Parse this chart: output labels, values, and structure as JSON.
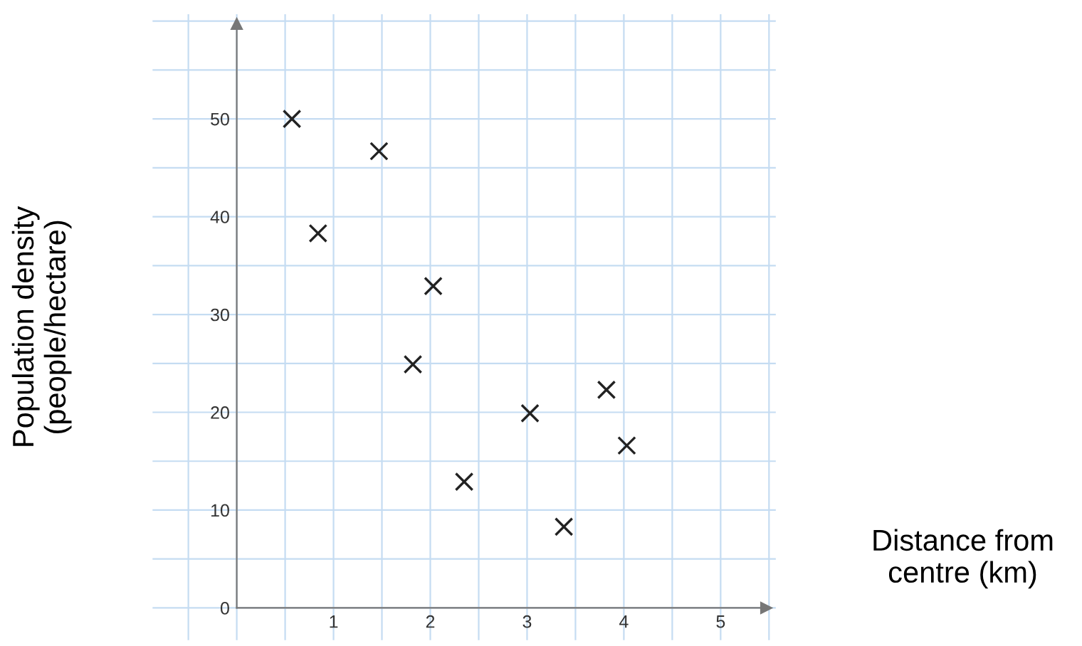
{
  "chart_data": {
    "type": "scatter",
    "xlabel": "Distance from\ncentre (km)",
    "ylabel": "Population density\n(people/hectare)",
    "x": [
      0.57,
      0.84,
      1.47,
      2.03,
      1.82,
      2.35,
      3.03,
      3.38,
      3.82,
      4.03
    ],
    "series": [
      {
        "color": "#222222",
        "values": [
          50.0,
          38.3,
          46.7,
          32.9,
          24.9,
          12.9,
          19.9,
          8.3,
          22.3,
          16.6
        ]
      }
    ],
    "xlim": [
      -0.87,
      5.57
    ],
    "ylim": [
      -3.3,
      60.7
    ],
    "xticks": [
      1,
      2,
      3,
      4,
      5
    ],
    "yticks": [
      0,
      10,
      20,
      30,
      40,
      50
    ],
    "grid": true,
    "marker": "cross",
    "legend": false
  }
}
